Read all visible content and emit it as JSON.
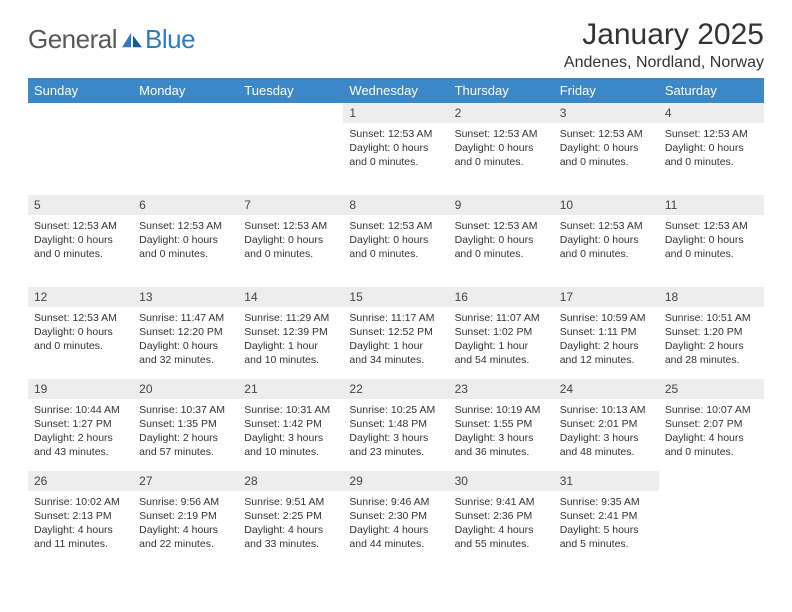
{
  "brand": {
    "general": "General",
    "blue": "Blue"
  },
  "title": "January 2025",
  "location": "Andenes, Nordland, Norway",
  "colors": {
    "header_bg": "#3b87c8",
    "header_fg": "#ffffff",
    "daynum_bg": "#ededed",
    "brand_blue": "#2f7bbf",
    "text": "#333333"
  },
  "weekdays": [
    "Sunday",
    "Monday",
    "Tuesday",
    "Wednesday",
    "Thursday",
    "Friday",
    "Saturday"
  ],
  "weeks": [
    [
      {
        "n": "",
        "lines": []
      },
      {
        "n": "",
        "lines": []
      },
      {
        "n": "",
        "lines": []
      },
      {
        "n": "1",
        "lines": [
          "Sunset: 12:53 AM",
          "Daylight: 0 hours and 0 minutes."
        ]
      },
      {
        "n": "2",
        "lines": [
          "Sunset: 12:53 AM",
          "Daylight: 0 hours and 0 minutes."
        ]
      },
      {
        "n": "3",
        "lines": [
          "Sunset: 12:53 AM",
          "Daylight: 0 hours and 0 minutes."
        ]
      },
      {
        "n": "4",
        "lines": [
          "Sunset: 12:53 AM",
          "Daylight: 0 hours and 0 minutes."
        ]
      }
    ],
    [
      {
        "n": "5",
        "lines": [
          "Sunset: 12:53 AM",
          "Daylight: 0 hours and 0 minutes."
        ]
      },
      {
        "n": "6",
        "lines": [
          "Sunset: 12:53 AM",
          "Daylight: 0 hours and 0 minutes."
        ]
      },
      {
        "n": "7",
        "lines": [
          "Sunset: 12:53 AM",
          "Daylight: 0 hours and 0 minutes."
        ]
      },
      {
        "n": "8",
        "lines": [
          "Sunset: 12:53 AM",
          "Daylight: 0 hours and 0 minutes."
        ]
      },
      {
        "n": "9",
        "lines": [
          "Sunset: 12:53 AM",
          "Daylight: 0 hours and 0 minutes."
        ]
      },
      {
        "n": "10",
        "lines": [
          "Sunset: 12:53 AM",
          "Daylight: 0 hours and 0 minutes."
        ]
      },
      {
        "n": "11",
        "lines": [
          "Sunset: 12:53 AM",
          "Daylight: 0 hours and 0 minutes."
        ]
      }
    ],
    [
      {
        "n": "12",
        "lines": [
          "Sunset: 12:53 AM",
          "Daylight: 0 hours and 0 minutes."
        ]
      },
      {
        "n": "13",
        "lines": [
          "Sunrise: 11:47 AM",
          "Sunset: 12:20 PM",
          "Daylight: 0 hours and 32 minutes."
        ]
      },
      {
        "n": "14",
        "lines": [
          "Sunrise: 11:29 AM",
          "Sunset: 12:39 PM",
          "Daylight: 1 hour and 10 minutes."
        ]
      },
      {
        "n": "15",
        "lines": [
          "Sunrise: 11:17 AM",
          "Sunset: 12:52 PM",
          "Daylight: 1 hour and 34 minutes."
        ]
      },
      {
        "n": "16",
        "lines": [
          "Sunrise: 11:07 AM",
          "Sunset: 1:02 PM",
          "Daylight: 1 hour and 54 minutes."
        ]
      },
      {
        "n": "17",
        "lines": [
          "Sunrise: 10:59 AM",
          "Sunset: 1:11 PM",
          "Daylight: 2 hours and 12 minutes."
        ]
      },
      {
        "n": "18",
        "lines": [
          "Sunrise: 10:51 AM",
          "Sunset: 1:20 PM",
          "Daylight: 2 hours and 28 minutes."
        ]
      }
    ],
    [
      {
        "n": "19",
        "lines": [
          "Sunrise: 10:44 AM",
          "Sunset: 1:27 PM",
          "Daylight: 2 hours and 43 minutes."
        ]
      },
      {
        "n": "20",
        "lines": [
          "Sunrise: 10:37 AM",
          "Sunset: 1:35 PM",
          "Daylight: 2 hours and 57 minutes."
        ]
      },
      {
        "n": "21",
        "lines": [
          "Sunrise: 10:31 AM",
          "Sunset: 1:42 PM",
          "Daylight: 3 hours and 10 minutes."
        ]
      },
      {
        "n": "22",
        "lines": [
          "Sunrise: 10:25 AM",
          "Sunset: 1:48 PM",
          "Daylight: 3 hours and 23 minutes."
        ]
      },
      {
        "n": "23",
        "lines": [
          "Sunrise: 10:19 AM",
          "Sunset: 1:55 PM",
          "Daylight: 3 hours and 36 minutes."
        ]
      },
      {
        "n": "24",
        "lines": [
          "Sunrise: 10:13 AM",
          "Sunset: 2:01 PM",
          "Daylight: 3 hours and 48 minutes."
        ]
      },
      {
        "n": "25",
        "lines": [
          "Sunrise: 10:07 AM",
          "Sunset: 2:07 PM",
          "Daylight: 4 hours and 0 minutes."
        ]
      }
    ],
    [
      {
        "n": "26",
        "lines": [
          "Sunrise: 10:02 AM",
          "Sunset: 2:13 PM",
          "Daylight: 4 hours and 11 minutes."
        ]
      },
      {
        "n": "27",
        "lines": [
          "Sunrise: 9:56 AM",
          "Sunset: 2:19 PM",
          "Daylight: 4 hours and 22 minutes."
        ]
      },
      {
        "n": "28",
        "lines": [
          "Sunrise: 9:51 AM",
          "Sunset: 2:25 PM",
          "Daylight: 4 hours and 33 minutes."
        ]
      },
      {
        "n": "29",
        "lines": [
          "Sunrise: 9:46 AM",
          "Sunset: 2:30 PM",
          "Daylight: 4 hours and 44 minutes."
        ]
      },
      {
        "n": "30",
        "lines": [
          "Sunrise: 9:41 AM",
          "Sunset: 2:36 PM",
          "Daylight: 4 hours and 55 minutes."
        ]
      },
      {
        "n": "31",
        "lines": [
          "Sunrise: 9:35 AM",
          "Sunset: 2:41 PM",
          "Daylight: 5 hours and 5 minutes."
        ]
      },
      {
        "n": "",
        "lines": []
      }
    ]
  ]
}
